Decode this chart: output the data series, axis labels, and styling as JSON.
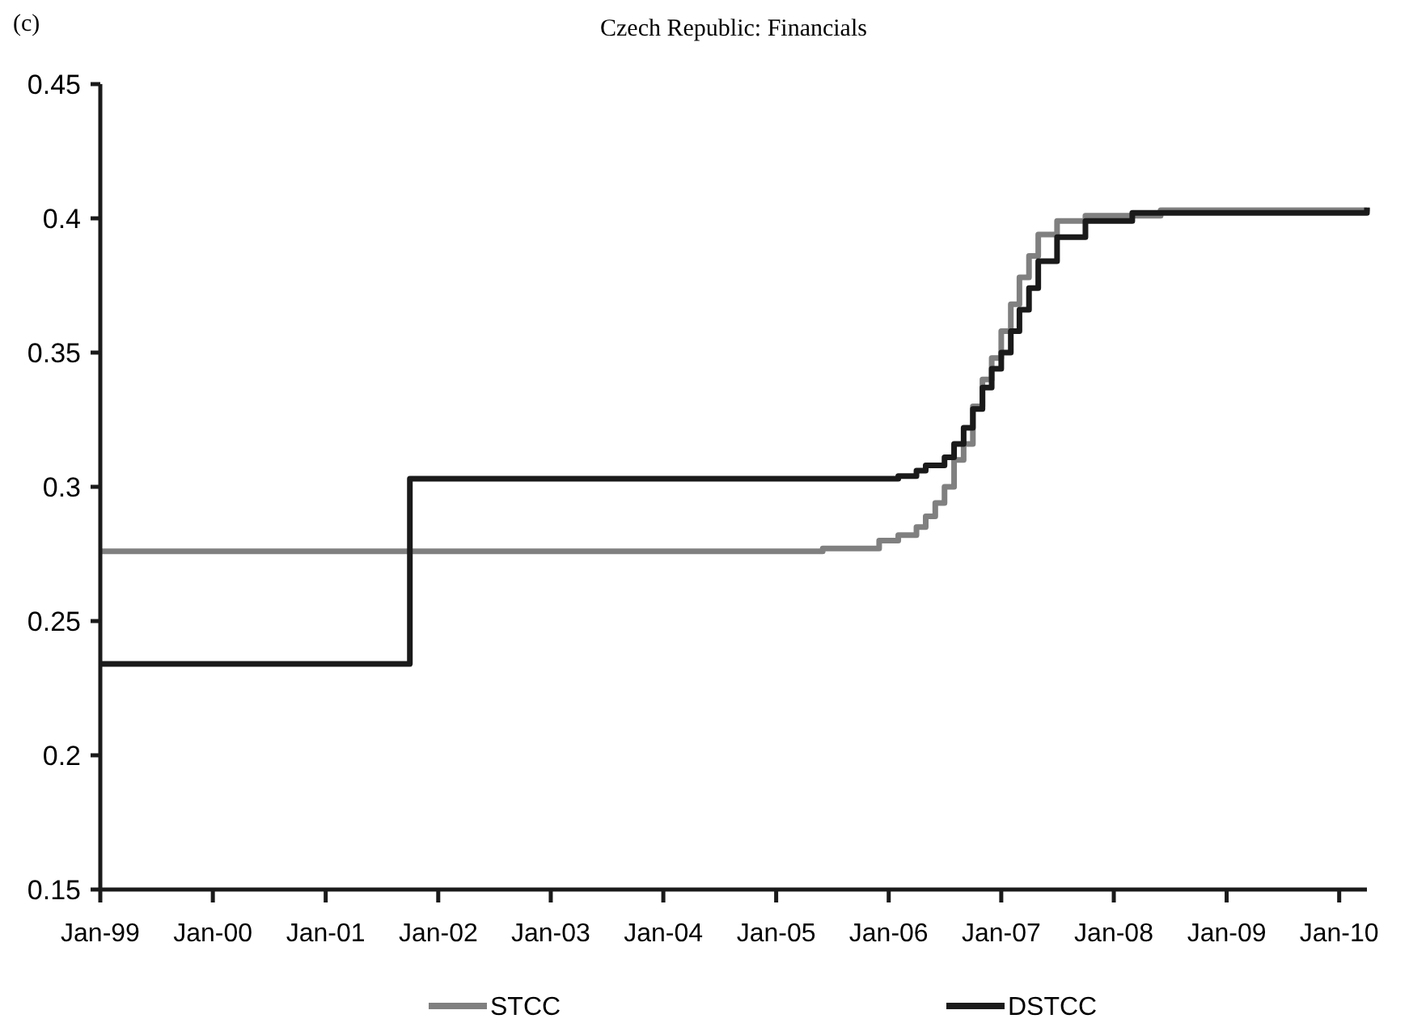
{
  "chart_data": {
    "type": "step",
    "title": "Czech Republic: Financials",
    "annotations": [
      "(c)"
    ],
    "xlim": [
      "1999-01",
      "2010-04"
    ],
    "xticks": [
      {
        "value": "1999-01",
        "label": "Jan-99"
      },
      {
        "value": "2000-01",
        "label": "Jan-00"
      },
      {
        "value": "2001-01",
        "label": "Jan-01"
      },
      {
        "value": "2002-01",
        "label": "Jan-02"
      },
      {
        "value": "2003-01",
        "label": "Jan-03"
      },
      {
        "value": "2004-01",
        "label": "Jan-04"
      },
      {
        "value": "2005-01",
        "label": "Jan-05"
      },
      {
        "value": "2006-01",
        "label": "Jan-06"
      },
      {
        "value": "2007-01",
        "label": "Jan-07"
      },
      {
        "value": "2008-01",
        "label": "Jan-08"
      },
      {
        "value": "2009-01",
        "label": "Jan-09"
      },
      {
        "value": "2010-01",
        "label": "Jan-10"
      }
    ],
    "ylim": [
      0.15,
      0.45
    ],
    "yticks": [
      0.15,
      0.2,
      0.25,
      0.3,
      0.35,
      0.4,
      0.45
    ],
    "grid": false,
    "legend": "bottom",
    "line_style": "solid",
    "marker": "none",
    "series": [
      {
        "name": "STCC",
        "color": "#808080",
        "x": [
          "1999-01",
          "2005-06",
          "2005-12",
          "2006-02",
          "2006-04",
          "2006-05",
          "2006-06",
          "2006-07",
          "2006-08",
          "2006-09",
          "2006-10",
          "2006-11",
          "2006-12",
          "2007-01",
          "2007-02",
          "2007-03",
          "2007-04",
          "2007-05",
          "2007-07",
          "2007-10",
          "2008-06",
          "2010-04"
        ],
        "values": [
          0.276,
          0.277,
          0.28,
          0.282,
          0.285,
          0.289,
          0.294,
          0.3,
          0.31,
          0.316,
          0.33,
          0.34,
          0.348,
          0.358,
          0.368,
          0.378,
          0.386,
          0.394,
          0.399,
          0.401,
          0.403,
          0.404
        ]
      },
      {
        "name": "DSTCC",
        "color": "#1a1a1a",
        "x": [
          "1999-01",
          "2001-10",
          "2006-02",
          "2006-04",
          "2006-05",
          "2006-07",
          "2006-08",
          "2006-09",
          "2006-10",
          "2006-11",
          "2006-12",
          "2007-01",
          "2007-02",
          "2007-03",
          "2007-04",
          "2007-05",
          "2007-07",
          "2007-10",
          "2008-03",
          "2010-04"
        ],
        "values": [
          0.234,
          0.303,
          0.304,
          0.306,
          0.308,
          0.311,
          0.316,
          0.322,
          0.329,
          0.337,
          0.344,
          0.35,
          0.358,
          0.366,
          0.374,
          0.384,
          0.393,
          0.399,
          0.402,
          0.404
        ]
      }
    ]
  }
}
